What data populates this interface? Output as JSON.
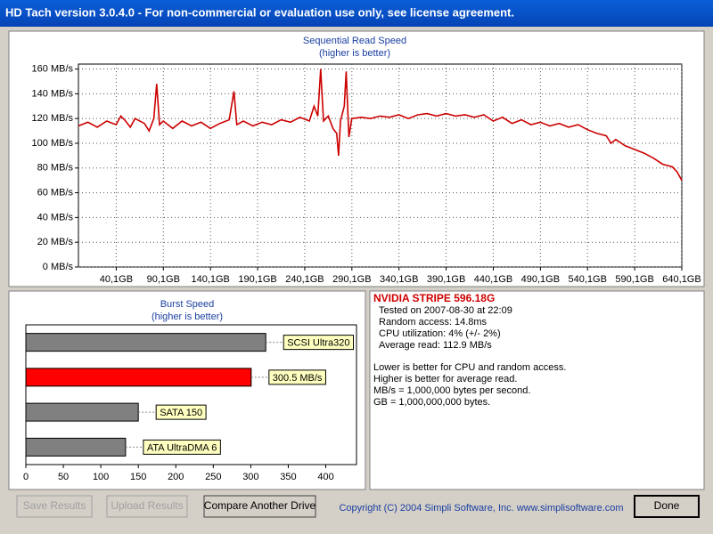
{
  "window": {
    "title": "HD Tach version 3.0.4.0  - For non-commercial or evaluation use only, see license agreement."
  },
  "chart_data": [
    {
      "type": "line",
      "title": "Sequential Read Speed",
      "subtitle": "(higher is better)",
      "x": [
        0,
        10,
        20,
        30,
        40,
        45,
        50,
        55,
        60,
        70,
        75,
        80,
        83,
        86,
        90,
        100,
        110,
        120,
        130,
        140,
        150,
        160,
        165,
        168,
        175,
        185,
        195,
        205,
        215,
        225,
        235,
        245,
        250,
        254,
        257,
        260,
        265,
        270,
        274,
        276,
        278,
        282,
        284,
        287,
        290,
        300,
        310,
        320,
        330,
        340,
        350,
        360,
        370,
        380,
        390,
        400,
        410,
        420,
        430,
        440,
        450,
        460,
        470,
        480,
        490,
        500,
        510,
        520,
        530,
        540,
        550,
        560,
        565,
        570,
        580,
        590,
        600,
        610,
        620,
        630,
        635,
        640.1
      ],
      "series": [
        {
          "name": "Read speed",
          "color": "#cc0000",
          "values": [
            114,
            117,
            113,
            118,
            115,
            122,
            118,
            113,
            120,
            116,
            110,
            120,
            148,
            115,
            118,
            112,
            118,
            114,
            117,
            112,
            116,
            119,
            142,
            115,
            118,
            114,
            117,
            115,
            119,
            117,
            121,
            118,
            130,
            122,
            160,
            118,
            122,
            112,
            108,
            90,
            118,
            130,
            158,
            105,
            120,
            121,
            120,
            122,
            121,
            123,
            120,
            123,
            124,
            122,
            124,
            122,
            123,
            121,
            123,
            118,
            121,
            116,
            119,
            115,
            117,
            114,
            116,
            113,
            115,
            111,
            108,
            106,
            100,
            103,
            98,
            95,
            92,
            88,
            83,
            81,
            77,
            70
          ]
        }
      ],
      "xlim": [
        0,
        640.1
      ],
      "xticks": [
        {
          "value": 40.1,
          "label": "40,1GB"
        },
        {
          "value": 90.1,
          "label": "90,1GB"
        },
        {
          "value": 140.1,
          "label": "140,1GB"
        },
        {
          "value": 190.1,
          "label": "190,1GB"
        },
        {
          "value": 240.1,
          "label": "240,1GB"
        },
        {
          "value": 290.1,
          "label": "290,1GB"
        },
        {
          "value": 340.1,
          "label": "340,1GB"
        },
        {
          "value": 390.1,
          "label": "390,1GB"
        },
        {
          "value": 440.1,
          "label": "440,1GB"
        },
        {
          "value": 490.1,
          "label": "490,1GB"
        },
        {
          "value": 540.1,
          "label": "540,1GB"
        },
        {
          "value": 590.1,
          "label": "590,1GB"
        },
        {
          "value": 640.1,
          "label": "640,1GB"
        }
      ],
      "ylim": [
        0,
        164
      ],
      "yticks": [
        {
          "value": 0,
          "label": "0 MB/s"
        },
        {
          "value": 20,
          "label": "20 MB/s"
        },
        {
          "value": 40,
          "label": "40 MB/s"
        },
        {
          "value": 60,
          "label": "60 MB/s"
        },
        {
          "value": 80,
          "label": "80 MB/s"
        },
        {
          "value": 100,
          "label": "100 MB/s"
        },
        {
          "value": 120,
          "label": "120 MB/s"
        },
        {
          "value": 140,
          "label": "140 MB/s"
        },
        {
          "value": 160,
          "label": "160 MB/s"
        }
      ],
      "grid": true
    },
    {
      "type": "hbar",
      "title": "Burst Speed",
      "subtitle": "(higher is better)",
      "categories": [
        "SCSI Ultra320",
        null,
        "SATA 150",
        "ATA UltraDMA 6"
      ],
      "values": [
        320,
        300.5,
        150,
        133
      ],
      "value_labels": [
        null,
        "300.5 MB/s",
        null,
        null
      ],
      "colors": [
        "#808080",
        "#ff0000",
        "#808080",
        "#808080"
      ],
      "xlim": [
        0,
        441
      ],
      "xticks": [
        0,
        50,
        100,
        150,
        200,
        250,
        300,
        350,
        400
      ]
    }
  ],
  "info": {
    "title": "NVIDIA STRIPE 596.18G",
    "lines": [
      "Tested on 2007-08-30 at 22:09",
      "Random access: 14.8ms",
      "CPU utilization: 4% (+/- 2%)",
      "Average read: 112.9 MB/s"
    ],
    "notes": [
      "Lower is better for CPU and random access.",
      "Higher is better for average read.",
      "MB/s = 1,000,000 bytes per second.",
      "GB = 1,000,000,000 bytes."
    ]
  },
  "buttons": [
    {
      "label": "Save Results",
      "enabled": false
    },
    {
      "label": "Upload Results",
      "enabled": false
    },
    {
      "label": "Compare Another Drive",
      "enabled": true
    },
    {
      "label": "Done",
      "enabled": true
    }
  ],
  "footer": {
    "copyright": "Copyright (C) 2004 Simpli Software, Inc. www.simplisoftware.com"
  }
}
